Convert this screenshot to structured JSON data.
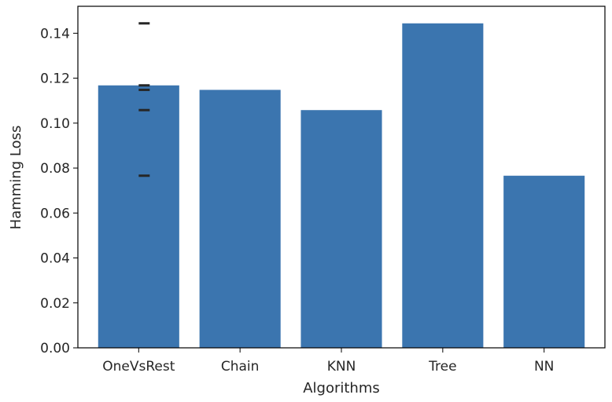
{
  "chart_data": {
    "type": "bar",
    "title": "",
    "xlabel": "Algorithms",
    "ylabel": "Hamming Loss",
    "categories": [
      "OneVsRest",
      "Chain",
      "KNN",
      "Tree",
      "NN"
    ],
    "values": [
      0.1168,
      0.1148,
      0.1058,
      0.1444,
      0.0766
    ],
    "ylim": [
      0,
      0.152
    ],
    "yticks": [
      0.0,
      0.02,
      0.04,
      0.06,
      0.08,
      0.1,
      0.12,
      0.14
    ],
    "ytick_labels": [
      "0.00",
      "0.02",
      "0.04",
      "0.06",
      "0.08",
      "0.10",
      "0.12",
      "0.14"
    ],
    "bar_color": "#3b75af",
    "marker_color": "#262626",
    "markers": {
      "category": "OneVsRest",
      "values": [
        0.1444,
        0.1168,
        0.1148,
        0.1058,
        0.0766
      ]
    },
    "grid": false,
    "legend": "none"
  }
}
